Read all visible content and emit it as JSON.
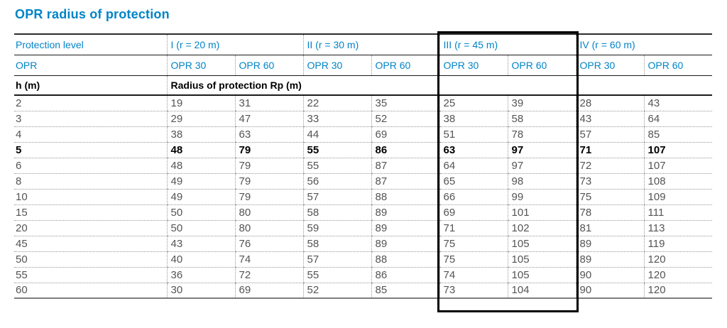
{
  "colors": {
    "accent": "#0084c8",
    "data_text": "#545454",
    "highlight_box": "#000000",
    "bottom_border": "#7e7e7e"
  },
  "title": "OPR radius of protection",
  "table": {
    "header": {
      "protection_level_label": "Protection level",
      "groups": [
        {
          "label": "I (r = 20 m)",
          "highlighted": false
        },
        {
          "label": "II (r = 30 m)",
          "highlighted": false
        },
        {
          "label": "III (r = 45 m)",
          "highlighted": true
        },
        {
          "label": "IV (r = 60 m)",
          "highlighted": false
        }
      ],
      "opr_label": "OPR",
      "opr_columns": [
        "OPR 30",
        "OPR 60",
        "OPR 30",
        "OPR 60",
        "OPR 30",
        "OPR 60",
        "OPR 30",
        "OPR 60"
      ],
      "h_label": "h (m)",
      "radius_label": "Radius of protection Rp (m)"
    },
    "rows": [
      {
        "h": "2",
        "values": [
          "19",
          "31",
          "22",
          "35",
          "25",
          "39",
          "28",
          "43"
        ],
        "bold": false
      },
      {
        "h": "3",
        "values": [
          "29",
          "47",
          "33",
          "52",
          "38",
          "58",
          "43",
          "64"
        ],
        "bold": false
      },
      {
        "h": "4",
        "values": [
          "38",
          "63",
          "44",
          "69",
          "51",
          "78",
          "57",
          "85"
        ],
        "bold": false
      },
      {
        "h": "5",
        "values": [
          "48",
          "79",
          "55",
          "86",
          "63",
          "97",
          "71",
          "107"
        ],
        "bold": true
      },
      {
        "h": "6",
        "values": [
          "48",
          "79",
          "55",
          "87",
          "64",
          "97",
          "72",
          "107"
        ],
        "bold": false
      },
      {
        "h": "8",
        "values": [
          "49",
          "79",
          "56",
          "87",
          "65",
          "98",
          "73",
          "108"
        ],
        "bold": false
      },
      {
        "h": "10",
        "values": [
          "49",
          "79",
          "57",
          "88",
          "66",
          "99",
          "75",
          "109"
        ],
        "bold": false
      },
      {
        "h": "15",
        "values": [
          "50",
          "80",
          "58",
          "89",
          "69",
          "101",
          "78",
          "111"
        ],
        "bold": false
      },
      {
        "h": "20",
        "values": [
          "50",
          "80",
          "59",
          "89",
          "71",
          "102",
          "81",
          "113"
        ],
        "bold": false
      },
      {
        "h": "45",
        "values": [
          "43",
          "76",
          "58",
          "89",
          "75",
          "105",
          "89",
          "119"
        ],
        "bold": false
      },
      {
        "h": "50",
        "values": [
          "40",
          "74",
          "57",
          "88",
          "75",
          "105",
          "89",
          "120"
        ],
        "bold": false
      },
      {
        "h": "55",
        "values": [
          "36",
          "72",
          "55",
          "86",
          "74",
          "105",
          "90",
          "120"
        ],
        "bold": false
      },
      {
        "h": "60",
        "values": [
          "30",
          "69",
          "52",
          "85",
          "73",
          "104",
          "90",
          "120"
        ],
        "bold": false
      }
    ]
  }
}
